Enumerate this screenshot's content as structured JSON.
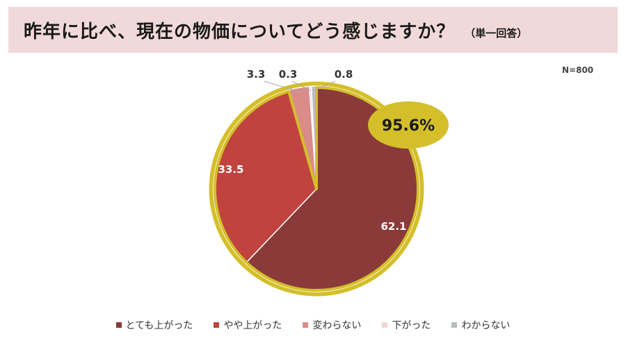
{
  "header": {
    "title": "昨年に比べ、現在の物価についてどう感じますか？",
    "subtitle": "（単一回答）"
  },
  "sample_note": "N=800",
  "highlight_label": "95.6%",
  "colors": {
    "title_bg": "#f2d9d9",
    "highlight_ring": "#d4bf2a"
  },
  "chart_data": {
    "type": "pie",
    "title": "昨年に比べ、現在の物価についてどう感じますか？",
    "categories": [
      "とても上がった",
      "やや上がった",
      "変わらない",
      "下がった",
      "わからない"
    ],
    "values": [
      62.1,
      33.5,
      3.3,
      0.3,
      0.8
    ],
    "value_labels": [
      "62.1",
      "33.5",
      "3.3",
      "0.3",
      "0.8"
    ],
    "colors": [
      "#8b3a3a",
      "#c0433f",
      "#d98c8a",
      "#f1d6d6",
      "#b8bcc4"
    ],
    "start": "12 o'clock",
    "direction": "clockwise",
    "legend_position": "bottom",
    "annotation": "95.6%"
  }
}
